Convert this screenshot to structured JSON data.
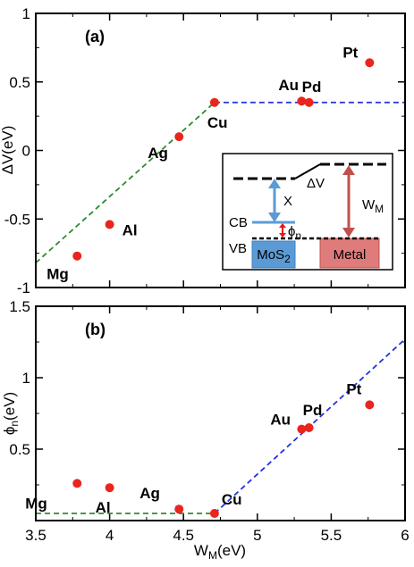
{
  "chart_data": [
    {
      "panel": "(a)",
      "type": "scatter",
      "ylabel": "ΔV(eV)",
      "xlim": [
        3.5,
        6
      ],
      "ylim": [
        -1,
        1
      ],
      "x_ticks": [
        3.5,
        4,
        4.5,
        5,
        5.5,
        6
      ],
      "y_ticks": [
        -1,
        -0.5,
        0,
        0.5,
        1
      ],
      "y_tick_labels": [
        "-1",
        "-0.5",
        "0",
        "0.5",
        "1"
      ],
      "points": [
        {
          "label": "Mg",
          "x": 3.78,
          "y": -0.77
        },
        {
          "label": "Al",
          "x": 4.0,
          "y": -0.54
        },
        {
          "label": "Ag",
          "x": 4.47,
          "y": 0.1
        },
        {
          "label": "Cu",
          "x": 4.71,
          "y": 0.35
        },
        {
          "label": "Au",
          "x": 5.3,
          "y": 0.36
        },
        {
          "label": "Pd",
          "x": 5.35,
          "y": 0.35
        },
        {
          "label": "Pt",
          "x": 5.76,
          "y": 0.64
        }
      ],
      "fit_lines": [
        {
          "color": "#2e8b2e",
          "x": [
            3.5,
            4.71
          ],
          "y": [
            -0.82,
            0.35
          ]
        },
        {
          "color": "#2233dd",
          "x": [
            4.71,
            6.0
          ],
          "y": [
            0.35,
            0.35
          ]
        }
      ],
      "inset": {
        "labels": {
          "delta_v": "ΔV",
          "chi": "X",
          "cb": "CB",
          "phi": "ϕ",
          "phi_sub": "n",
          "vb": "VB",
          "wm": "W",
          "wm_sub": "M",
          "mos2": "MoS",
          "mos2_sub": "2",
          "metal": "Metal"
        },
        "colors": {
          "mos2": "#5b9bd5",
          "metal": "#e07b7b",
          "chi_arrow": "#5b9bd5",
          "phi_arrow": "#e41a1c",
          "wm_arrow": "#c0504d"
        }
      }
    },
    {
      "panel": "(b)",
      "type": "scatter",
      "xlabel": "W",
      "xlabel_sub": "M",
      "xlabel_unit": "(eV)",
      "ylabel": "ϕ",
      "ylabel_sub": "n",
      "ylabel_unit": "(eV)",
      "xlim": [
        3.5,
        6
      ],
      "ylim": [
        0,
        1.5
      ],
      "x_ticks": [
        3.5,
        4,
        4.5,
        5,
        5.5,
        6
      ],
      "x_tick_labels": [
        "3.5",
        "4",
        "4.5",
        "5",
        "5.5",
        "6"
      ],
      "y_ticks": [
        0.5,
        1,
        1.5
      ],
      "y_tick_labels": [
        "0.5",
        "1",
        "1.5"
      ],
      "points": [
        {
          "label": "Mg",
          "x": 3.78,
          "y": 0.26
        },
        {
          "label": "Al",
          "x": 4.0,
          "y": 0.23
        },
        {
          "label": "Ag",
          "x": 4.47,
          "y": 0.08
        },
        {
          "label": "Cu",
          "x": 4.71,
          "y": 0.05
        },
        {
          "label": "Au",
          "x": 5.3,
          "y": 0.64
        },
        {
          "label": "Pd",
          "x": 5.35,
          "y": 0.65
        },
        {
          "label": "Pt",
          "x": 5.76,
          "y": 0.81
        }
      ],
      "fit_lines": [
        {
          "color": "#2e8b2e",
          "x": [
            3.5,
            4.71
          ],
          "y": [
            0.05,
            0.05
          ]
        },
        {
          "color": "#2233dd",
          "x": [
            4.71,
            6.0
          ],
          "y": [
            0.05,
            1.27
          ]
        }
      ]
    }
  ],
  "colors": {
    "points": "#e8261e",
    "frame": "#000000"
  }
}
